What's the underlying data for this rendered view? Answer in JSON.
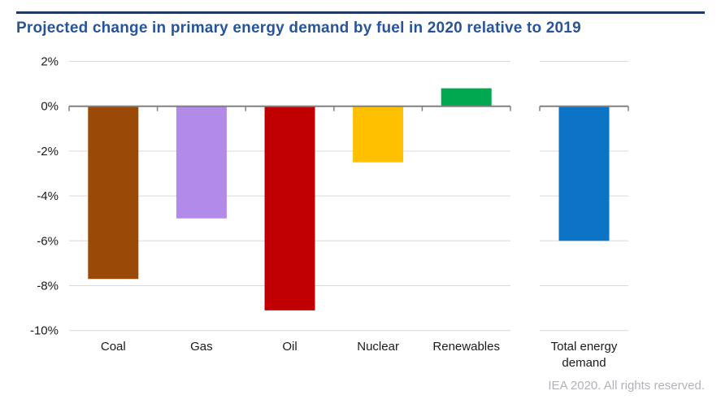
{
  "title": "Projected change in primary energy demand by fuel in 2020 relative to 2019",
  "footer": "IEA 2020. All rights reserved.",
  "colors": {
    "title_text": "#28549B",
    "top_rule": "#1F3864",
    "axis_line": "#808080",
    "gridline": "#D9D9D9",
    "tick_label": "#1A1A1A",
    "footer_text": "#B2B2BA",
    "background": "#FFFFFF"
  },
  "chart_data": {
    "type": "bar",
    "title": "Projected change in primary energy demand by fuel in 2020 relative to 2019",
    "categories": [
      "Coal",
      "Gas",
      "Oil",
      "Nuclear",
      "Renewables",
      "Total energy demand"
    ],
    "label_lines": [
      [
        "Coal"
      ],
      [
        "Gas"
      ],
      [
        "Oil"
      ],
      [
        "Nuclear"
      ],
      [
        "Renewables"
      ],
      [
        "Total energy",
        "demand"
      ]
    ],
    "values": [
      -7.7,
      -5.0,
      -9.1,
      -2.5,
      0.8,
      -6.0
    ],
    "unit": "%",
    "bar_colors": [
      "#9A4A06",
      "#B28BE8",
      "#C00000",
      "#FFC000",
      "#00A950",
      "#0B74C5"
    ],
    "xlabel": "",
    "ylabel": "",
    "ylim": [
      -10,
      2
    ],
    "ytick_step": 2,
    "ytick_labels": [
      "2%",
      "0%",
      "-2%",
      "-4%",
      "-6%",
      "-8%",
      "-10%"
    ],
    "grid": true,
    "legend": "none",
    "layout_note": "last category rendered in a separate right-hand panel"
  }
}
